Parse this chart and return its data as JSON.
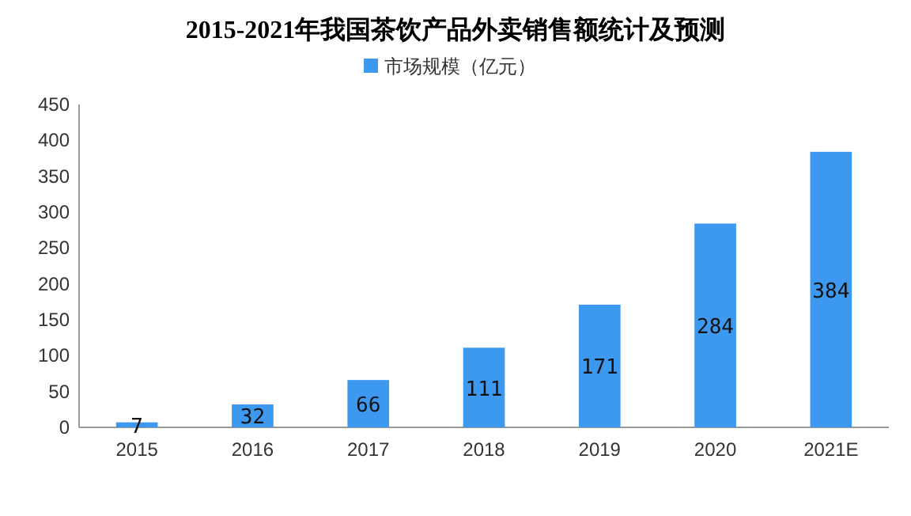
{
  "chart_data": {
    "type": "bar",
    "title": "2015-2021年我国茶饮产品外卖销售额统计及预测",
    "categories": [
      "2015",
      "2016",
      "2017",
      "2018",
      "2019",
      "2020",
      "2021E"
    ],
    "series": [
      {
        "name": "市场规模（亿元）",
        "color": "#3d99f0",
        "values": [
          7,
          32,
          66,
          111,
          171,
          284,
          384
        ]
      }
    ],
    "ylim": [
      0,
      450
    ],
    "yticks": [
      0,
      50,
      100,
      150,
      200,
      250,
      300,
      350,
      400,
      450
    ],
    "data_labels": true,
    "legend": "top",
    "grid": false
  }
}
